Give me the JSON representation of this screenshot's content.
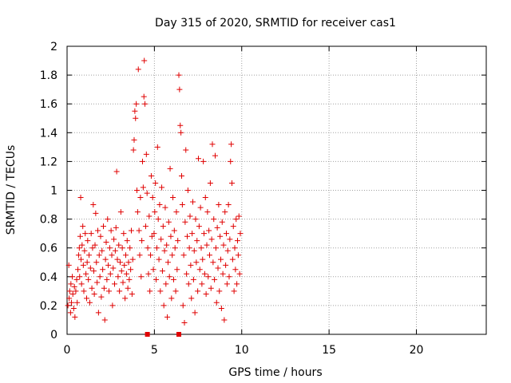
{
  "chart_data": {
    "type": "scatter",
    "title": "Day 315 of 2020, SRMTID for receiver cas1",
    "xlabel": "GPS time / hours",
    "ylabel": "SRMTID / TECUs",
    "xlim": [
      0,
      24
    ],
    "ylim": [
      0,
      2
    ],
    "xticks": [
      0,
      5,
      10,
      15,
      20
    ],
    "xtick_labels": [
      "0",
      "5",
      "10",
      "15",
      "20"
    ],
    "yticks": [
      0,
      0.2,
      0.4,
      0.6,
      0.8,
      1,
      1.2,
      1.4,
      1.6,
      1.8,
      2
    ],
    "ytick_labels": [
      "0",
      "0.2",
      "0.4",
      "0.6",
      "0.8",
      "1",
      "1.2",
      "1.4",
      "1.6",
      "1.8",
      "2"
    ],
    "grid": true,
    "marker": "+",
    "color": "#e00000",
    "axis_markers": [
      {
        "x": 4.6,
        "y": 0
      },
      {
        "x": 6.4,
        "y": 0
      }
    ],
    "series": [
      {
        "name": "cas1",
        "points": [
          [
            0.05,
            0.2
          ],
          [
            0.1,
            0.48
          ],
          [
            0.12,
            0.25
          ],
          [
            0.15,
            0.3
          ],
          [
            0.2,
            0.15
          ],
          [
            0.22,
            0.35
          ],
          [
            0.25,
            0.22
          ],
          [
            0.3,
            0.4
          ],
          [
            0.33,
            0.28
          ],
          [
            0.38,
            0.18
          ],
          [
            0.42,
            0.33
          ],
          [
            0.45,
            0.12
          ],
          [
            0.5,
            0.3
          ],
          [
            0.55,
            0.38
          ],
          [
            0.58,
            0.22
          ],
          [
            0.62,
            0.45
          ],
          [
            0.66,
            0.55
          ],
          [
            0.7,
            0.6
          ],
          [
            0.72,
            0.4
          ],
          [
            0.75,
            0.68
          ],
          [
            0.78,
            0.95
          ],
          [
            0.8,
            0.52
          ],
          [
            0.83,
            0.35
          ],
          [
            0.86,
            0.62
          ],
          [
            0.9,
            0.75
          ],
          [
            0.93,
            0.48
          ],
          [
            0.96,
            0.3
          ],
          [
            1.0,
            0.58
          ],
          [
            1.04,
            0.7
          ],
          [
            1.08,
            0.42
          ],
          [
            1.12,
            0.25
          ],
          [
            1.15,
            0.5
          ],
          [
            1.18,
            0.65
          ],
          [
            1.22,
            0.38
          ],
          [
            1.26,
            0.55
          ],
          [
            1.3,
            0.22
          ],
          [
            1.34,
            0.46
          ],
          [
            1.38,
            0.7
          ],
          [
            1.42,
            0.32
          ],
          [
            1.46,
            0.6
          ],
          [
            1.5,
            0.9
          ],
          [
            1.53,
            0.44
          ],
          [
            1.56,
            0.28
          ],
          [
            1.6,
            0.62
          ],
          [
            1.64,
            0.84
          ],
          [
            1.68,
            0.5
          ],
          [
            1.72,
            0.36
          ],
          [
            1.76,
            0.72
          ],
          [
            1.8,
            0.15
          ],
          [
            1.84,
            0.55
          ],
          [
            1.88,
            0.4
          ],
          [
            1.92,
            0.68
          ],
          [
            1.96,
            0.26
          ],
          [
            2.0,
            0.58
          ],
          [
            2.04,
            0.45
          ],
          [
            2.08,
            0.75
          ],
          [
            2.12,
            0.32
          ],
          [
            2.16,
            0.1
          ],
          [
            2.2,
            0.52
          ],
          [
            2.24,
            0.64
          ],
          [
            2.28,
            0.38
          ],
          [
            2.32,
            0.8
          ],
          [
            2.36,
            0.48
          ],
          [
            2.4,
            0.3
          ],
          [
            2.44,
            0.6
          ],
          [
            2.48,
            0.42
          ],
          [
            2.52,
            0.72
          ],
          [
            2.56,
            0.55
          ],
          [
            2.6,
            0.2
          ],
          [
            2.64,
            0.46
          ],
          [
            2.68,
            0.66
          ],
          [
            2.72,
            0.35
          ],
          [
            2.76,
            0.58
          ],
          [
            2.8,
            0.74
          ],
          [
            2.84,
            1.13
          ],
          [
            2.88,
            0.52
          ],
          [
            2.92,
            0.4
          ],
          [
            2.96,
            0.62
          ],
          [
            3.0,
            0.3
          ],
          [
            3.04,
            0.5
          ],
          [
            3.08,
            0.85
          ],
          [
            3.12,
            0.44
          ],
          [
            3.16,
            0.6
          ],
          [
            3.2,
            0.36
          ],
          [
            3.24,
            0.7
          ],
          [
            3.28,
            0.48
          ],
          [
            3.32,
            0.25
          ],
          [
            3.36,
            0.55
          ],
          [
            3.4,
            0.42
          ],
          [
            3.44,
            0.65
          ],
          [
            3.48,
            0.32
          ],
          [
            3.52,
            0.5
          ],
          [
            3.56,
            0.38
          ],
          [
            3.6,
            0.6
          ],
          [
            3.64,
            0.45
          ],
          [
            3.68,
            0.72
          ],
          [
            3.72,
            0.28
          ],
          [
            3.76,
            0.52
          ],
          [
            3.8,
            1.28
          ],
          [
            3.84,
            1.35
          ],
          [
            3.88,
            1.55
          ],
          [
            3.92,
            1.5
          ],
          [
            3.96,
            1.6
          ],
          [
            4.0,
            1.0
          ],
          [
            4.04,
            0.85
          ],
          [
            4.08,
            1.84
          ],
          [
            4.12,
            0.72
          ],
          [
            4.16,
            0.55
          ],
          [
            4.2,
            0.95
          ],
          [
            4.24,
            0.4
          ],
          [
            4.28,
            0.65
          ],
          [
            4.32,
            1.2
          ],
          [
            4.36,
            1.02
          ],
          [
            4.4,
            1.65
          ],
          [
            4.42,
            1.9
          ],
          [
            4.46,
            1.6
          ],
          [
            4.5,
            0.75
          ],
          [
            4.54,
            1.25
          ],
          [
            4.58,
            0.98
          ],
          [
            4.62,
            0.6
          ],
          [
            4.66,
            0.42
          ],
          [
            4.7,
            0.82
          ],
          [
            4.74,
            0.3
          ],
          [
            4.78,
            0.55
          ],
          [
            4.82,
            1.1
          ],
          [
            4.86,
            0.68
          ],
          [
            4.9,
            0.95
          ],
          [
            4.94,
            0.45
          ],
          [
            4.98,
            0.7
          ],
          [
            5.02,
            0.85
          ],
          [
            5.06,
            1.05
          ],
          [
            5.1,
            0.38
          ],
          [
            5.14,
            0.6
          ],
          [
            5.18,
            1.3
          ],
          [
            5.22,
            0.8
          ],
          [
            5.26,
            0.52
          ],
          [
            5.3,
            0.9
          ],
          [
            5.34,
            0.3
          ],
          [
            5.38,
            0.66
          ],
          [
            5.42,
            1.02
          ],
          [
            5.46,
            0.44
          ],
          [
            5.5,
            0.75
          ],
          [
            5.54,
            0.2
          ],
          [
            5.58,
            0.58
          ],
          [
            5.62,
            0.88
          ],
          [
            5.66,
            0.35
          ],
          [
            5.7,
            0.62
          ],
          [
            5.74,
            0.12
          ],
          [
            5.78,
            0.5
          ],
          [
            5.82,
            0.78
          ],
          [
            5.86,
            0.4
          ],
          [
            5.9,
            1.15
          ],
          [
            5.94,
            0.68
          ],
          [
            5.98,
            0.25
          ],
          [
            6.02,
            0.55
          ],
          [
            6.06,
            0.95
          ],
          [
            6.1,
            0.38
          ],
          [
            6.14,
            0.72
          ],
          [
            6.18,
            0.6
          ],
          [
            6.22,
            0.3
          ],
          [
            6.26,
            0.85
          ],
          [
            6.3,
            0.45
          ],
          [
            6.34,
            0.65
          ],
          [
            6.4,
            1.8
          ],
          [
            6.44,
            1.7
          ],
          [
            6.48,
            1.45
          ],
          [
            6.52,
            1.4
          ],
          [
            6.56,
            1.1
          ],
          [
            6.6,
            0.9
          ],
          [
            6.64,
            0.2
          ],
          [
            6.68,
            0.55
          ],
          [
            6.72,
            0.08
          ],
          [
            6.76,
            0.78
          ],
          [
            6.8,
            1.28
          ],
          [
            6.84,
            0.42
          ],
          [
            6.88,
            0.68
          ],
          [
            6.92,
            1.0
          ],
          [
            6.96,
            0.35
          ],
          [
            7.0,
            0.6
          ],
          [
            7.04,
            0.82
          ],
          [
            7.08,
            0.48
          ],
          [
            7.12,
            0.25
          ],
          [
            7.16,
            0.7
          ],
          [
            7.2,
            0.92
          ],
          [
            7.24,
            0.38
          ],
          [
            7.28,
            0.58
          ],
          [
            7.32,
            0.15
          ],
          [
            7.36,
            0.8
          ],
          [
            7.4,
            0.5
          ],
          [
            7.44,
            0.65
          ],
          [
            7.48,
            0.3
          ],
          [
            7.52,
            1.22
          ],
          [
            7.56,
            0.75
          ],
          [
            7.6,
            0.45
          ],
          [
            7.64,
            0.88
          ],
          [
            7.68,
            0.6
          ],
          [
            7.72,
            0.35
          ],
          [
            7.76,
            0.52
          ],
          [
            7.8,
            1.2
          ],
          [
            7.84,
            0.7
          ],
          [
            7.88,
            0.42
          ],
          [
            7.92,
            0.95
          ],
          [
            7.96,
            0.28
          ],
          [
            8.0,
            0.62
          ],
          [
            8.04,
            0.85
          ],
          [
            8.08,
            0.4
          ],
          [
            8.12,
            0.72
          ],
          [
            8.16,
            0.55
          ],
          [
            8.2,
            1.05
          ],
          [
            8.24,
            0.32
          ],
          [
            8.28,
            0.66
          ],
          [
            8.32,
            1.32
          ],
          [
            8.36,
            0.5
          ],
          [
            8.4,
            0.8
          ],
          [
            8.44,
            0.38
          ],
          [
            8.48,
            1.24
          ],
          [
            8.52,
            0.6
          ],
          [
            8.56,
            0.22
          ],
          [
            8.6,
            0.74
          ],
          [
            8.64,
            0.46
          ],
          [
            8.68,
            0.9
          ],
          [
            8.72,
            0.3
          ],
          [
            8.76,
            0.68
          ],
          [
            8.8,
            0.52
          ],
          [
            8.84,
            0.18
          ],
          [
            8.88,
            0.78
          ],
          [
            8.92,
            0.42
          ],
          [
            8.96,
            0.62
          ],
          [
            9.0,
            0.1
          ],
          [
            9.04,
            0.85
          ],
          [
            9.08,
            0.48
          ],
          [
            9.12,
            0.7
          ],
          [
            9.16,
            0.35
          ],
          [
            9.2,
            0.58
          ],
          [
            9.24,
            0.9
          ],
          [
            9.28,
            0.4
          ],
          [
            9.32,
            0.66
          ],
          [
            9.36,
            1.2
          ],
          [
            9.4,
            1.32
          ],
          [
            9.44,
            1.05
          ],
          [
            9.48,
            0.52
          ],
          [
            9.52,
            0.75
          ],
          [
            9.56,
            0.3
          ],
          [
            9.6,
            0.6
          ],
          [
            9.64,
            0.45
          ],
          [
            9.68,
            0.8
          ],
          [
            9.72,
            0.35
          ],
          [
            9.76,
            0.65
          ],
          [
            9.8,
            0.55
          ],
          [
            9.84,
            0.82
          ],
          [
            9.88,
            0.42
          ],
          [
            9.92,
            0.7
          ]
        ]
      }
    ]
  }
}
